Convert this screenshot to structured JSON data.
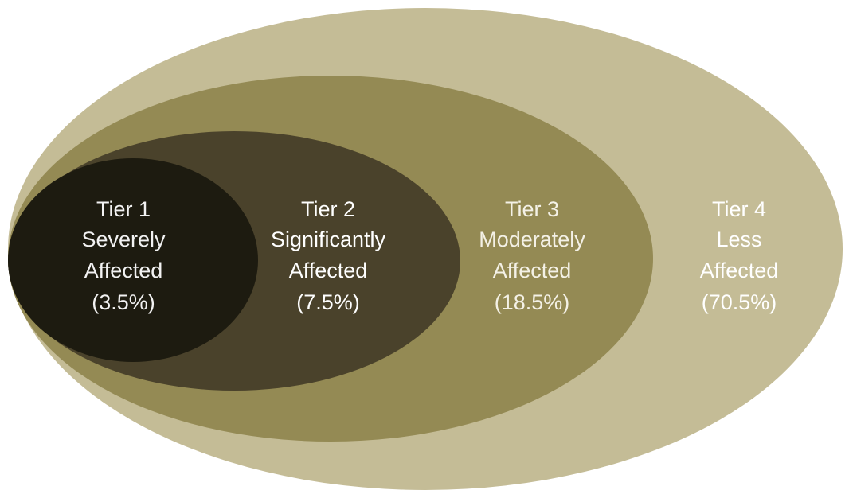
{
  "nodes": [
    {
      "lines": [
        "Tier 1",
        "Severely",
        "Affected",
        "(3.5%)"
      ]
    },
    {
      "lines": [
        "Tier 2",
        "Significantly",
        "Affected",
        "(7.5%)"
      ]
    },
    {
      "lines": [
        "Tier 3",
        "Moderately",
        "Affected",
        "(18.5%)"
      ]
    },
    {
      "lines": [
        "Tier 4",
        "Less",
        "Affected",
        "(70.5%)"
      ]
    }
  ]
}
